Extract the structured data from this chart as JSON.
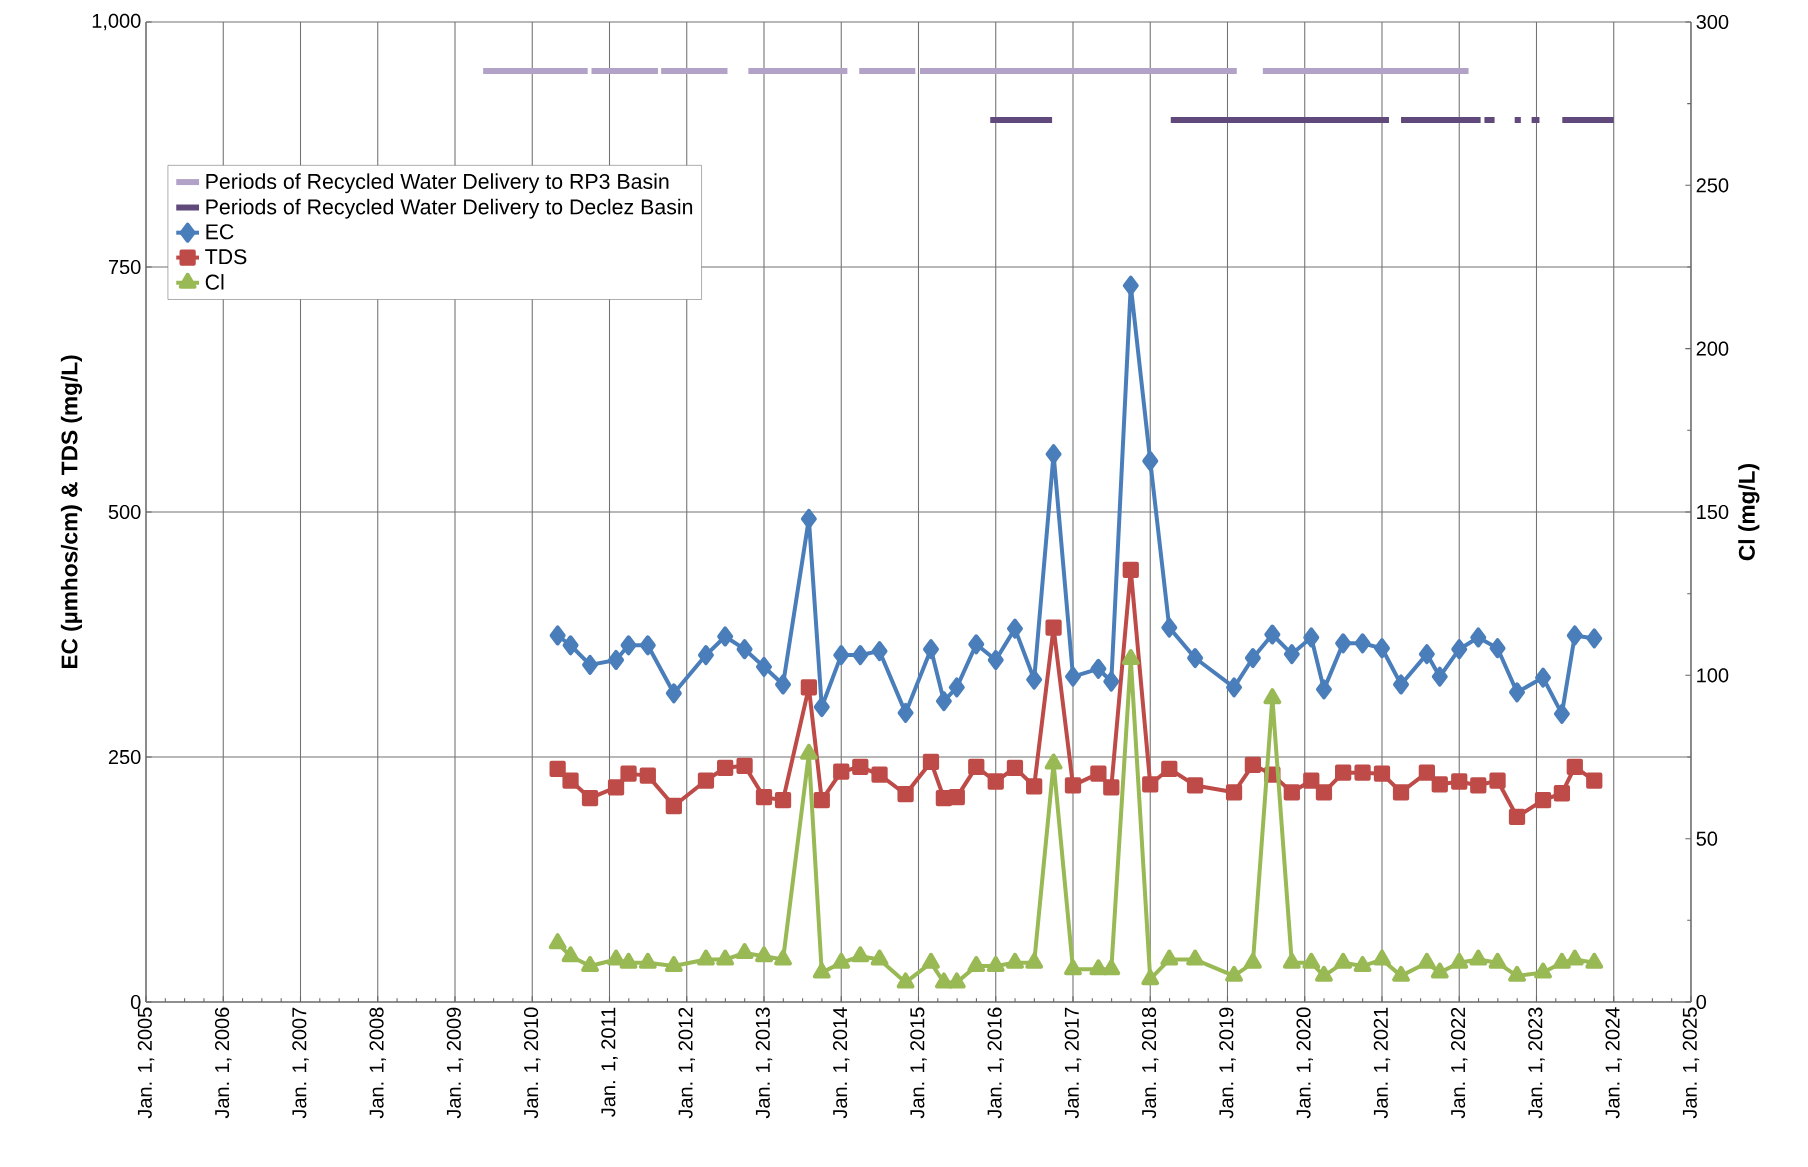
{
  "chart_data": {
    "type": "line",
    "ylabel": "EC (µmhos/cm) & TDS (mg/L)",
    "y2label": "Cl (mg/L)",
    "xlim": [
      "2005-01-01",
      "2025-01-01"
    ],
    "xticks": [
      {
        "value": "2005-01-01",
        "label": "Jan. 1, 2005"
      },
      {
        "value": "2006-01-01",
        "label": "Jan. 1, 2006"
      },
      {
        "value": "2007-01-01",
        "label": "Jan. 1, 2007"
      },
      {
        "value": "2008-01-01",
        "label": "Jan. 1, 2008"
      },
      {
        "value": "2009-01-01",
        "label": "Jan. 1, 2009"
      },
      {
        "value": "2010-01-01",
        "label": "Jan. 1, 2010"
      },
      {
        "value": "2011-01-01",
        "label": "Jan. 1, 2011"
      },
      {
        "value": "2012-01-01",
        "label": "Jan. 1, 2012"
      },
      {
        "value": "2013-01-01",
        "label": "Jan. 1, 2013"
      },
      {
        "value": "2014-01-01",
        "label": "Jan. 1, 2014"
      },
      {
        "value": "2015-01-01",
        "label": "Jan. 1, 2015"
      },
      {
        "value": "2016-01-01",
        "label": "Jan. 1, 2016"
      },
      {
        "value": "2017-01-01",
        "label": "Jan. 1, 2017"
      },
      {
        "value": "2018-01-01",
        "label": "Jan. 1, 2018"
      },
      {
        "value": "2019-01-01",
        "label": "Jan. 1, 2019"
      },
      {
        "value": "2020-01-01",
        "label": "Jan. 1, 2020"
      },
      {
        "value": "2021-01-01",
        "label": "Jan. 1, 2021"
      },
      {
        "value": "2022-01-01",
        "label": "Jan. 1, 2022"
      },
      {
        "value": "2023-01-01",
        "label": "Jan. 1, 2023"
      },
      {
        "value": "2024-01-01",
        "label": "Jan. 1, 2024"
      },
      {
        "value": "2025-01-01",
        "label": "Jan. 1, 2025"
      }
    ],
    "ylim": [
      0,
      1000
    ],
    "yticks": [
      0,
      250,
      500,
      750,
      {
        "value": 1000,
        "label": "1,000"
      }
    ],
    "y2lim": [
      0,
      300
    ],
    "y2ticks": [
      0,
      50,
      100,
      150,
      200,
      250,
      300
    ],
    "grid": true,
    "legend": "top left",
    "x": [
      "2010-05",
      "2010-07",
      "2010-10",
      "2011-02",
      "2011-04",
      "2011-07",
      "2011-11",
      "2012-04",
      "2012-07",
      "2012-10",
      "2013-01",
      "2013-04",
      "2013-08",
      "2013-10",
      "2014-01",
      "2014-04",
      "2014-07",
      "2014-11",
      "2015-03",
      "2015-05",
      "2015-07",
      "2015-10",
      "2016-01",
      "2016-04",
      "2016-07",
      "2016-10",
      "2017-01",
      "2017-05",
      "2017-07",
      "2017-10",
      "2018-01",
      "2018-04",
      "2018-08",
      "2019-02",
      "2019-05",
      "2019-08",
      "2019-11",
      "2020-02",
      "2020-04",
      "2020-07",
      "2020-10",
      "2021-01",
      "2021-04",
      "2021-08",
      "2021-10",
      "2022-01",
      "2022-04",
      "2022-07",
      "2022-10",
      "2023-02",
      "2023-05",
      "2023-07",
      "2023-10"
    ],
    "series": [
      {
        "name": "Periods of Recycled Water Delivery to RP3 Basin",
        "color": "#b3a2c7",
        "marker": "none",
        "x": [
          "2009-05-14",
          "2010-09-20",
          "2010-09-21",
          "2010-10-08",
          "2011-08-18",
          "2011-08-19",
          "2011-09-02",
          "2012-07-12",
          "2012-07-13",
          "2012-10-19",
          "2014-01-30",
          "2014-01-31",
          "2014-03-27",
          "2014-12-17",
          "2014-12-18",
          "2015-01-08",
          "2019-02-14",
          "2019-02-15",
          "2019-06-17",
          "2022-02-14"
        ],
        "values": [
          950,
          950,
          null,
          950,
          950,
          null,
          950,
          950,
          null,
          950,
          950,
          null,
          950,
          950,
          null,
          950,
          950,
          null,
          950,
          950
        ]
      },
      {
        "name": "Periods of Recycled Water Delivery to Declez Basin",
        "color": "#604a7b",
        "marker": "none",
        "x": [
          "2015-12-06",
          "2016-09-24",
          "2016-09-25",
          "2018-04-08",
          "2021-02-03",
          "2021-02-04",
          "2021-04-01",
          "2022-04-12",
          "2022-04-13",
          "2022-04-30",
          "2022-06-17",
          "2022-06-18",
          "2022-09-20",
          "2022-10-19",
          "2022-10-20",
          "2022-12-09",
          "2023-01-15",
          "2023-01-16",
          "2023-05-03",
          "2024-01-01"
        ],
        "values": [
          900,
          900,
          null,
          900,
          900,
          null,
          900,
          900,
          null,
          900,
          900,
          null,
          900,
          900,
          null,
          900,
          900,
          null,
          900,
          900
        ]
      },
      {
        "name": "EC",
        "color": "#4a7ebb",
        "marker": "diamond",
        "values": [
          374,
          364,
          344,
          349,
          364,
          364,
          315,
          354,
          373,
          360,
          342,
          324,
          493,
          301,
          354,
          354,
          358,
          295,
          360,
          307,
          321,
          365,
          349,
          381,
          329,
          559,
          332,
          340,
          327,
          731,
          552,
          382,
          351,
          321,
          351,
          375,
          355,
          372,
          319,
          366,
          366,
          361,
          324,
          355,
          332,
          360,
          372,
          361,
          316,
          331,
          294,
          374,
          371
        ]
      },
      {
        "name": "TDS",
        "color": "#be4b48",
        "marker": "square",
        "values": [
          238,
          226,
          208,
          219,
          233,
          231,
          200,
          226,
          239,
          241,
          209,
          206,
          321,
          206,
          235,
          240,
          232,
          212,
          245,
          208,
          209,
          240,
          225,
          239,
          220,
          382,
          221,
          233,
          219,
          441,
          222,
          238,
          221,
          214,
          242,
          232,
          214,
          226,
          214,
          234,
          234,
          233,
          214,
          234,
          222,
          225,
          221,
          226,
          189,
          206,
          213,
          240,
          226
        ]
      },
      {
        "name": "Cl",
        "color": "#98b954",
        "marker": "triangle",
        "axis": "y2",
        "values": [
          18,
          14,
          11,
          13,
          12,
          12,
          11,
          13,
          13,
          15,
          14,
          13,
          76,
          9,
          12,
          14,
          13,
          6,
          12,
          6,
          6,
          11,
          11,
          12,
          12,
          73,
          10,
          10,
          10,
          105,
          7,
          13,
          13,
          8,
          12,
          93,
          12,
          12,
          8,
          12,
          11,
          13,
          8,
          12,
          9,
          12,
          13,
          12,
          8,
          9,
          12,
          13,
          12
        ]
      }
    ]
  }
}
